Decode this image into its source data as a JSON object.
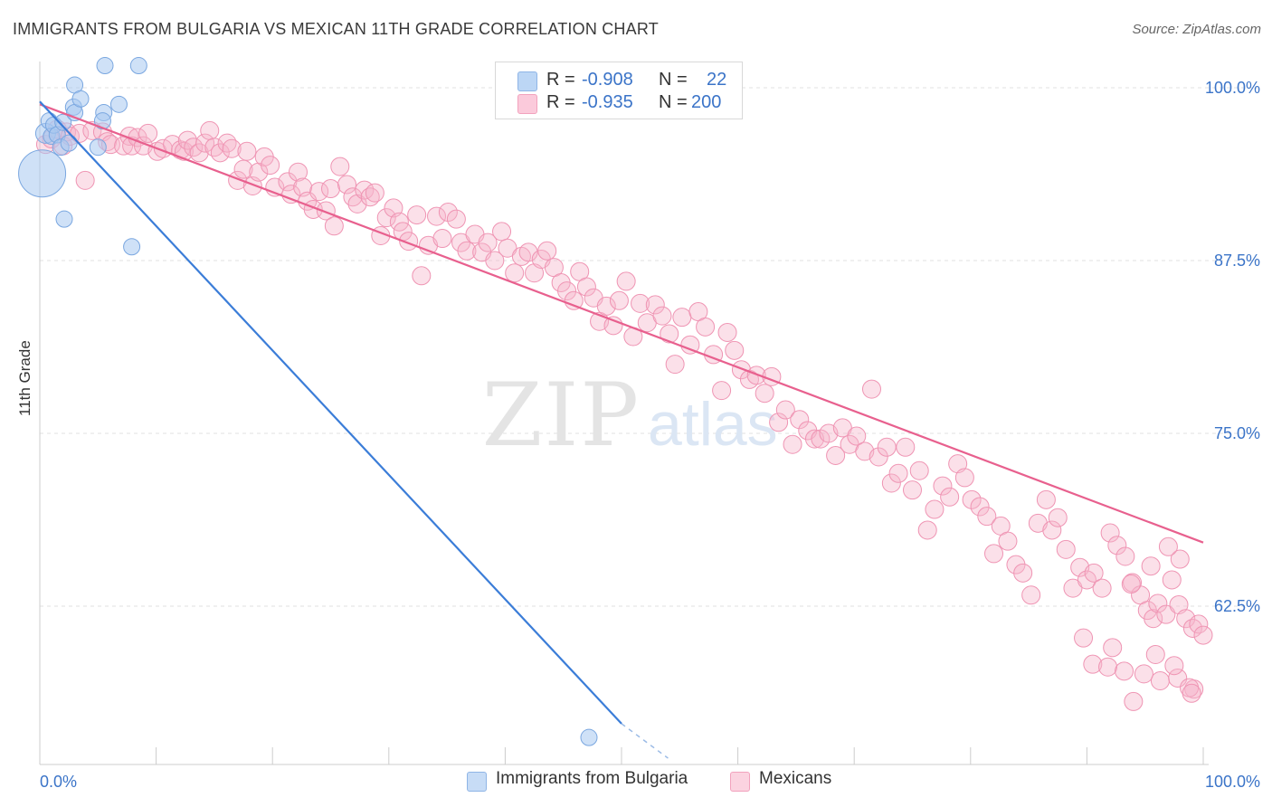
{
  "title": "IMMIGRANTS FROM BULGARIA VS MEXICAN 11TH GRADE CORRELATION CHART",
  "source": "Source: ZipAtlas.com",
  "watermark": {
    "zip": "ZIP",
    "atlas": "atlas"
  },
  "legend_top": {
    "rows": [
      {
        "r_label": "R =",
        "r_value": "-0.908",
        "n_label": "N =",
        "n_value": "22",
        "color": "#a8c8f0"
      },
      {
        "r_label": "R =",
        "r_value": "-0.935",
        "n_label": "N =",
        "n_value": "200",
        "color": "#f7b8cb"
      }
    ]
  },
  "bottom_legend": [
    {
      "label": "Immigrants from Bulgaria",
      "color": "#b8d4f4"
    },
    {
      "label": "Mexicans",
      "color": "#f9c9d8"
    }
  ],
  "colors": {
    "blue": "#3b7dd8",
    "pink": "#e8608e",
    "blue_fill": "#a8c8f0",
    "pink_fill": "#f5b6ca",
    "axis_text": "#3b74c8"
  },
  "chart_data": {
    "type": "scatter",
    "ylabel": "11th Grade",
    "xlabel": "",
    "xlim": [
      0,
      100
    ],
    "ylim": [
      51.5,
      100
    ],
    "x_tick_labels": [
      "0.0%",
      "100.0%"
    ],
    "y_ticks": [
      62.5,
      75.0,
      87.5,
      100.0
    ],
    "y_tick_labels": [
      "62.5%",
      "75.0%",
      "87.5%",
      "100.0%"
    ],
    "grid": "horizontal dashed",
    "series": [
      {
        "name": "Immigrants from Bulgaria",
        "color": "#3b7dd8",
        "trend": {
          "x": [
            0,
            50
          ],
          "y": [
            99.0,
            54.0
          ],
          "dashed_to": [
            54,
            51.5
          ]
        },
        "points": [
          [
            0.2,
            93.8,
            26
          ],
          [
            0.5,
            96.7,
            11
          ],
          [
            0.8,
            97.6,
            9
          ],
          [
            1.0,
            96.5,
            9
          ],
          [
            1.2,
            97.3,
            9
          ],
          [
            1.5,
            96.6,
            9
          ],
          [
            1.8,
            95.7,
            9
          ],
          [
            2.0,
            97.5,
            9
          ],
          [
            2.1,
            90.5,
            9
          ],
          [
            2.5,
            96.0,
            9
          ],
          [
            2.9,
            98.6,
            9
          ],
          [
            3.0,
            98.2,
            9
          ],
          [
            3.0,
            100.2,
            9
          ],
          [
            3.5,
            99.2,
            9
          ],
          [
            5.0,
            95.7,
            9
          ],
          [
            5.5,
            98.2,
            9
          ],
          [
            5.4,
            97.6,
            9
          ],
          [
            5.6,
            101.6,
            9
          ],
          [
            6.8,
            98.8,
            9
          ],
          [
            7.9,
            88.5,
            9
          ],
          [
            8.5,
            101.6,
            9
          ],
          [
            47.2,
            53.0,
            9
          ]
        ]
      },
      {
        "name": "Mexicans",
        "color": "#e8608e",
        "trend": {
          "x": [
            0,
            100
          ],
          "y": [
            98.8,
            67.1
          ]
        },
        "points": [
          [
            0.5,
            95.9
          ],
          [
            1.0,
            96.3
          ],
          [
            1.5,
            97.0
          ],
          [
            2.0,
            95.8
          ],
          [
            2.3,
            96.8
          ],
          [
            2.6,
            96.5
          ],
          [
            3.4,
            96.7
          ],
          [
            3.9,
            93.3
          ],
          [
            4.5,
            96.9
          ],
          [
            5.4,
            96.8
          ],
          [
            5.8,
            96.1
          ],
          [
            6.1,
            95.9
          ],
          [
            7.2,
            95.8
          ],
          [
            7.7,
            96.5
          ],
          [
            7.9,
            95.8
          ],
          [
            8.4,
            96.4
          ],
          [
            8.9,
            95.8
          ],
          [
            9.3,
            96.7
          ],
          [
            10.1,
            95.4
          ],
          [
            10.6,
            95.6
          ],
          [
            11.4,
            95.9
          ],
          [
            12.1,
            95.5
          ],
          [
            12.4,
            95.4
          ],
          [
            12.7,
            96.2
          ],
          [
            13.2,
            95.7
          ],
          [
            13.7,
            95.3
          ],
          [
            14.2,
            96.0
          ],
          [
            14.6,
            96.9
          ],
          [
            15.0,
            95.7
          ],
          [
            15.5,
            95.3
          ],
          [
            16.1,
            96.0
          ],
          [
            16.5,
            95.6
          ],
          [
            17.0,
            93.3
          ],
          [
            17.5,
            94.1
          ],
          [
            17.8,
            95.4
          ],
          [
            18.3,
            92.9
          ],
          [
            18.8,
            93.9
          ],
          [
            19.3,
            95.0
          ],
          [
            19.8,
            94.4
          ],
          [
            20.2,
            92.8
          ],
          [
            21.3,
            93.2
          ],
          [
            21.6,
            92.3
          ],
          [
            22.2,
            93.9
          ],
          [
            22.6,
            92.8
          ],
          [
            23.0,
            91.8
          ],
          [
            23.5,
            91.2
          ],
          [
            24.0,
            92.5
          ],
          [
            24.6,
            91.1
          ],
          [
            25.0,
            92.7
          ],
          [
            25.3,
            90.0
          ],
          [
            25.8,
            94.3
          ],
          [
            26.4,
            93.0
          ],
          [
            26.9,
            92.1
          ],
          [
            27.3,
            91.6
          ],
          [
            27.9,
            92.6
          ],
          [
            28.4,
            92.1
          ],
          [
            28.8,
            92.4
          ],
          [
            29.3,
            89.3
          ],
          [
            29.8,
            90.6
          ],
          [
            30.4,
            91.3
          ],
          [
            30.9,
            90.3
          ],
          [
            31.2,
            89.6
          ],
          [
            31.7,
            88.9
          ],
          [
            32.4,
            90.8
          ],
          [
            32.8,
            86.4
          ],
          [
            33.4,
            88.6
          ],
          [
            34.1,
            90.7
          ],
          [
            34.6,
            89.1
          ],
          [
            35.1,
            91.0
          ],
          [
            35.8,
            90.5
          ],
          [
            36.2,
            88.8
          ],
          [
            36.7,
            88.2
          ],
          [
            37.4,
            89.4
          ],
          [
            38.0,
            88.1
          ],
          [
            38.5,
            88.8
          ],
          [
            39.1,
            87.5
          ],
          [
            39.7,
            89.6
          ],
          [
            40.2,
            88.4
          ],
          [
            40.8,
            86.6
          ],
          [
            41.4,
            87.8
          ],
          [
            42.0,
            88.1
          ],
          [
            42.5,
            86.6
          ],
          [
            43.1,
            87.6
          ],
          [
            43.6,
            88.2
          ],
          [
            44.2,
            87.0
          ],
          [
            44.8,
            85.9
          ],
          [
            45.3,
            85.3
          ],
          [
            45.9,
            84.6
          ],
          [
            46.4,
            86.7
          ],
          [
            47.0,
            85.6
          ],
          [
            47.6,
            84.8
          ],
          [
            48.1,
            83.1
          ],
          [
            48.7,
            84.2
          ],
          [
            49.3,
            82.8
          ],
          [
            49.8,
            84.6
          ],
          [
            50.4,
            86.0
          ],
          [
            51.0,
            82.0
          ],
          [
            51.6,
            84.4
          ],
          [
            52.2,
            83.0
          ],
          [
            52.9,
            84.3
          ],
          [
            53.5,
            83.5
          ],
          [
            54.1,
            82.2
          ],
          [
            54.6,
            80.0
          ],
          [
            55.2,
            83.4
          ],
          [
            55.9,
            81.4
          ],
          [
            56.6,
            83.8
          ],
          [
            57.2,
            82.7
          ],
          [
            57.9,
            80.7
          ],
          [
            58.6,
            78.1
          ],
          [
            59.1,
            82.3
          ],
          [
            59.7,
            81.0
          ],
          [
            60.3,
            79.6
          ],
          [
            61.0,
            78.9
          ],
          [
            61.6,
            79.2
          ],
          [
            62.3,
            77.9
          ],
          [
            62.9,
            79.1
          ],
          [
            63.5,
            75.8
          ],
          [
            64.1,
            76.7
          ],
          [
            64.7,
            74.2
          ],
          [
            65.3,
            76.0
          ],
          [
            66.0,
            75.2
          ],
          [
            66.6,
            74.6
          ],
          [
            67.1,
            74.6
          ],
          [
            67.8,
            75.0
          ],
          [
            68.4,
            73.4
          ],
          [
            69.0,
            75.4
          ],
          [
            69.6,
            74.2
          ],
          [
            70.2,
            74.8
          ],
          [
            70.9,
            73.7
          ],
          [
            71.5,
            78.2
          ],
          [
            72.1,
            73.3
          ],
          [
            72.8,
            74.0
          ],
          [
            73.2,
            71.4
          ],
          [
            73.8,
            72.1
          ],
          [
            74.4,
            74.0
          ],
          [
            75.0,
            70.9
          ],
          [
            75.6,
            72.3
          ],
          [
            76.3,
            68.0
          ],
          [
            76.9,
            69.5
          ],
          [
            77.6,
            71.2
          ],
          [
            78.2,
            70.4
          ],
          [
            78.9,
            72.8
          ],
          [
            79.5,
            71.8
          ],
          [
            80.1,
            70.2
          ],
          [
            80.8,
            69.7
          ],
          [
            81.4,
            69.0
          ],
          [
            82.0,
            66.3
          ],
          [
            82.6,
            68.3
          ],
          [
            83.2,
            67.2
          ],
          [
            83.9,
            65.5
          ],
          [
            84.5,
            64.9
          ],
          [
            85.2,
            63.3
          ],
          [
            85.8,
            68.5
          ],
          [
            86.5,
            70.2
          ],
          [
            87.0,
            68.0
          ],
          [
            87.5,
            68.9
          ],
          [
            88.2,
            66.6
          ],
          [
            88.8,
            63.8
          ],
          [
            89.4,
            65.3
          ],
          [
            90.0,
            64.4
          ],
          [
            90.6,
            64.9
          ],
          [
            91.3,
            63.8
          ],
          [
            92.0,
            67.8
          ],
          [
            92.6,
            66.9
          ],
          [
            93.3,
            66.1
          ],
          [
            93.9,
            64.2
          ],
          [
            94.6,
            63.3
          ],
          [
            95.2,
            62.2
          ],
          [
            95.7,
            61.6
          ],
          [
            96.1,
            62.7
          ],
          [
            96.8,
            61.9
          ],
          [
            97.3,
            64.4
          ],
          [
            97.9,
            62.6
          ],
          [
            98.5,
            61.6
          ],
          [
            99.1,
            60.9
          ],
          [
            99.6,
            61.2
          ],
          [
            100.0,
            60.4
          ],
          [
            99.2,
            56.5
          ],
          [
            94.0,
            55.6
          ],
          [
            98.0,
            65.9
          ],
          [
            97.0,
            66.8
          ],
          [
            95.5,
            65.4
          ],
          [
            93.8,
            64.1
          ],
          [
            92.2,
            59.5
          ],
          [
            90.5,
            58.3
          ],
          [
            89.7,
            60.2
          ],
          [
            91.8,
            58.1
          ],
          [
            93.2,
            57.8
          ],
          [
            94.9,
            57.6
          ],
          [
            96.3,
            57.1
          ],
          [
            97.8,
            57.3
          ],
          [
            98.8,
            56.6
          ],
          [
            97.5,
            58.2
          ],
          [
            99.0,
            56.2
          ],
          [
            95.9,
            59.0
          ]
        ]
      }
    ]
  }
}
